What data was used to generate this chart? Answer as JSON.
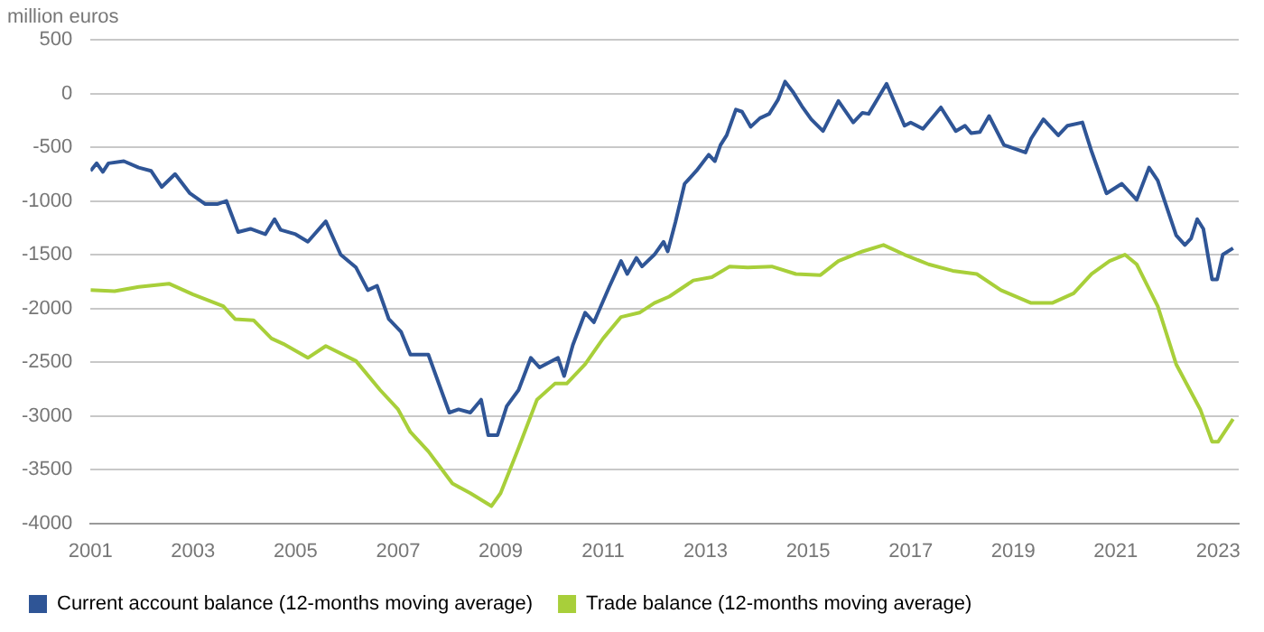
{
  "chart_data": {
    "type": "line",
    "ylabel": "million euros",
    "series": [
      {
        "name": "Current account balance (12-months moving average)",
        "color": "#2f5596",
        "x": [
          2001.0,
          2001.12,
          2001.24,
          2001.35,
          2001.65,
          2001.94,
          2002.18,
          2002.39,
          2002.65,
          2002.94,
          2003.24,
          2003.47,
          2003.65,
          2003.88,
          2004.12,
          2004.41,
          2004.59,
          2004.71,
          2005.0,
          2005.24,
          2005.59,
          2005.88,
          2006.18,
          2006.41,
          2006.59,
          2006.82,
          2007.06,
          2007.24,
          2007.59,
          2008.0,
          2008.18,
          2008.41,
          2008.62,
          2008.76,
          2008.94,
          2009.12,
          2009.35,
          2009.59,
          2009.76,
          2010.12,
          2010.24,
          2010.41,
          2010.65,
          2010.82,
          2011.12,
          2011.35,
          2011.47,
          2011.65,
          2011.76,
          2012.0,
          2012.18,
          2012.26,
          2012.41,
          2012.59,
          2012.82,
          2013.06,
          2013.18,
          2013.29,
          2013.41,
          2013.59,
          2013.71,
          2013.88,
          2014.06,
          2014.24,
          2014.41,
          2014.55,
          2014.71,
          2014.88,
          2015.06,
          2015.29,
          2015.59,
          2015.88,
          2016.06,
          2016.18,
          2016.53,
          2016.88,
          2017.0,
          2017.24,
          2017.59,
          2017.88,
          2018.06,
          2018.18,
          2018.35,
          2018.53,
          2018.82,
          2019.0,
          2019.24,
          2019.35,
          2019.59,
          2019.88,
          2020.06,
          2020.35,
          2020.53,
          2020.82,
          2021.12,
          2021.41,
          2021.65,
          2021.82,
          2022.18,
          2022.35,
          2022.47,
          2022.59,
          2022.71,
          2022.88,
          2022.98,
          2023.09,
          2023.29
        ],
        "values": [
          -720,
          -650,
          -730,
          -650,
          -630,
          -690,
          -720,
          -870,
          -750,
          -930,
          -1030,
          -1030,
          -1000,
          -1290,
          -1260,
          -1310,
          -1170,
          -1270,
          -1310,
          -1380,
          -1190,
          -1500,
          -1620,
          -1830,
          -1790,
          -2100,
          -2220,
          -2430,
          -2430,
          -2970,
          -2940,
          -2970,
          -2850,
          -3180,
          -3180,
          -2910,
          -2760,
          -2460,
          -2550,
          -2460,
          -2630,
          -2340,
          -2040,
          -2130,
          -1800,
          -1560,
          -1680,
          -1530,
          -1610,
          -1500,
          -1380,
          -1470,
          -1200,
          -840,
          -720,
          -570,
          -630,
          -480,
          -390,
          -150,
          -170,
          -310,
          -230,
          -190,
          -60,
          110,
          10,
          -120,
          -240,
          -350,
          -70,
          -270,
          -180,
          -190,
          90,
          -300,
          -270,
          -330,
          -130,
          -350,
          -300,
          -370,
          -360,
          -210,
          -480,
          -510,
          -550,
          -420,
          -240,
          -390,
          -300,
          -270,
          -540,
          -930,
          -840,
          -990,
          -690,
          -810,
          -1320,
          -1410,
          -1350,
          -1170,
          -1260,
          -1730,
          -1730,
          -1500,
          -1440
        ]
      },
      {
        "name": "Trade balance (12-months moving average)",
        "color": "#a8cf3a",
        "x": [
          2001.0,
          2001.47,
          2001.94,
          2002.53,
          2003.0,
          2003.59,
          2003.82,
          2004.18,
          2004.53,
          2004.76,
          2005.24,
          2005.59,
          2006.18,
          2006.65,
          2007.0,
          2007.24,
          2007.59,
          2008.06,
          2008.41,
          2008.82,
          2009.0,
          2009.35,
          2009.71,
          2010.06,
          2010.29,
          2010.65,
          2011.0,
          2011.35,
          2011.71,
          2012.0,
          2012.29,
          2012.76,
          2013.12,
          2013.47,
          2013.82,
          2014.29,
          2014.76,
          2015.24,
          2015.59,
          2016.06,
          2016.47,
          2016.88,
          2017.35,
          2017.82,
          2018.29,
          2018.76,
          2019.35,
          2019.76,
          2020.18,
          2020.53,
          2020.88,
          2021.18,
          2021.41,
          2021.82,
          2022.18,
          2022.65,
          2022.88,
          2023.0,
          2023.29
        ],
        "values": [
          -1830,
          -1840,
          -1800,
          -1770,
          -1870,
          -1980,
          -2100,
          -2110,
          -2280,
          -2330,
          -2460,
          -2350,
          -2490,
          -2760,
          -2940,
          -3150,
          -3330,
          -3630,
          -3720,
          -3840,
          -3720,
          -3300,
          -2850,
          -2700,
          -2700,
          -2520,
          -2280,
          -2080,
          -2040,
          -1950,
          -1890,
          -1740,
          -1710,
          -1610,
          -1620,
          -1610,
          -1680,
          -1690,
          -1560,
          -1470,
          -1410,
          -1500,
          -1590,
          -1650,
          -1680,
          -1830,
          -1950,
          -1950,
          -1860,
          -1680,
          -1560,
          -1500,
          -1590,
          -1980,
          -2520,
          -2940,
          -3240,
          -3240,
          -3030
        ]
      }
    ],
    "xlim": [
      2001,
      2023.4
    ],
    "xticks": [
      2001,
      2003,
      2005,
      2007,
      2009,
      2011,
      2013,
      2015,
      2017,
      2019,
      2021,
      2023
    ],
    "ylim": [
      -4000,
      500
    ],
    "yticks": [
      -4000,
      -3500,
      -3000,
      -2500,
      -2000,
      -1500,
      -1000,
      -500,
      0,
      500
    ],
    "grid": "y",
    "legend": "bottom left",
    "marker": "none",
    "line_style": "solid"
  }
}
